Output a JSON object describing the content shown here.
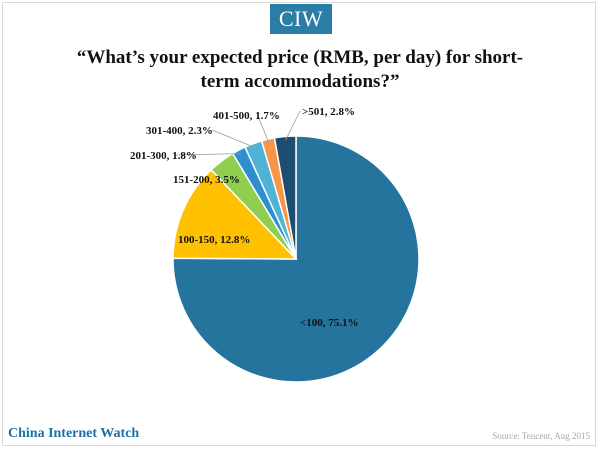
{
  "header": {
    "logo_text": "CIW"
  },
  "chart_data": {
    "type": "pie",
    "title": "“What’s your expected price (RMB, per day) for short-term accommodations?”",
    "slices": [
      {
        "label": "<100, 75.1%",
        "category": "<100",
        "value": 75.1,
        "color": "#24749e"
      },
      {
        "label": "100-150, 12.8%",
        "category": "100-150",
        "value": 12.8,
        "color": "#ffc000"
      },
      {
        "label": "151-200, 3.5%",
        "category": "151-200",
        "value": 3.5,
        "color": "#8fce4e"
      },
      {
        "label": "201-300, 1.8%",
        "category": "201-300",
        "value": 1.8,
        "color": "#2e8fd0"
      },
      {
        "label": "301-400, 2.3%",
        "category": "301-400",
        "value": 2.3,
        "color": "#4fb3d5"
      },
      {
        "label": "401-500, 1.7%",
        "category": "401-500",
        "value": 1.7,
        "color": "#f79646"
      },
      {
        "label": ">501, 2.8%",
        "category": ">501",
        "value": 2.8,
        "color": "#1d4e72"
      }
    ]
  },
  "footer": {
    "brand": "China Internet Watch",
    "source": "Source: Tencent, Aug 2015"
  }
}
